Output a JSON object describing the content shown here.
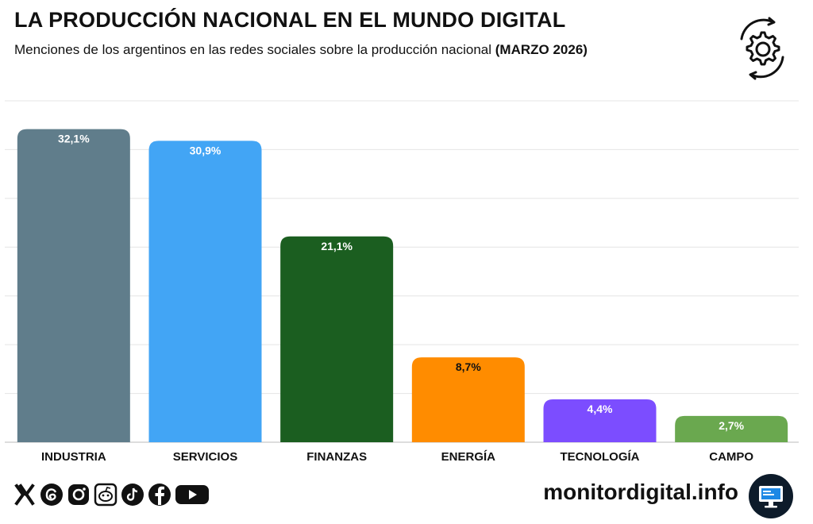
{
  "header": {
    "title": "LA PRODUCCIÓN NACIONAL EN EL MUNDO DIGITAL",
    "subtitle": "Menciones de los argentinos en las redes sociales sobre la producción nacional",
    "subtitle_bold": "(MARZO 2026)"
  },
  "chart_data": {
    "type": "bar",
    "categories": [
      "INDUSTRIA",
      "SERVICIOS",
      "FINANZAS",
      "ENERGÍA",
      "TECNOLOGÍA",
      "CAMPO"
    ],
    "values": [
      32.1,
      30.9,
      21.1,
      8.7,
      4.4,
      2.7
    ],
    "value_labels": [
      "32,1%",
      "30,9%",
      "21,1%",
      "8,7%",
      "4,4%",
      "2,7%"
    ],
    "colors": [
      "#607d8b",
      "#42a5f5",
      "#1b5e20",
      "#ff8c00",
      "#7c4dff",
      "#6aa84f"
    ],
    "label_colors": [
      "#ffffff",
      "#ffffff",
      "#ffffff",
      "#111111",
      "#ffffff",
      "#ffffff"
    ],
    "ylim": [
      0,
      35
    ],
    "grid": true
  },
  "footer": {
    "site": "monitordigital.info",
    "social_icons": [
      "x-icon",
      "threads-icon",
      "instagram-icon",
      "reddit-icon",
      "tiktok-icon",
      "facebook-icon",
      "youtube-icon"
    ]
  }
}
